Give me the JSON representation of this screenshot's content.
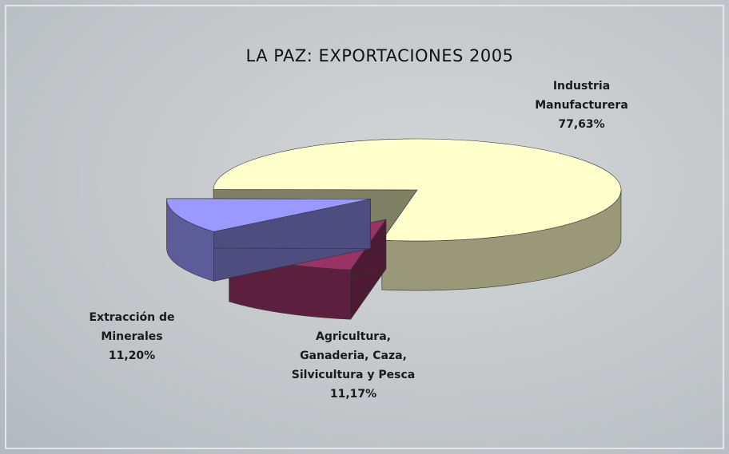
{
  "chart_data": {
    "type": "pie",
    "title": "LA PAZ: EXPORTACIONES 2005",
    "categories": [
      "Industria Manufacturera",
      "Extracción de Minerales",
      "Agricultura, Ganaderia, Caza, Silvicultura y Pesca"
    ],
    "values": [
      77.63,
      11.2,
      11.17
    ],
    "value_labels": [
      "77,63%",
      "11,20%",
      "11,17%"
    ],
    "colors": [
      "#ffffcc",
      "#993366",
      "#9999ff"
    ]
  }
}
